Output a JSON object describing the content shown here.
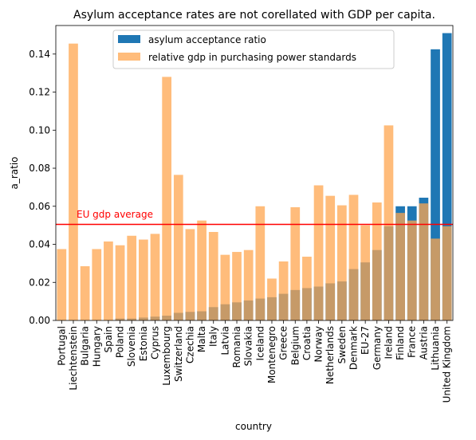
{
  "chart_data": {
    "type": "bar",
    "title": "Asylum acceptance rates are not corellated with GDP per capita.",
    "xlabel": "country",
    "ylabel": "a_ratio",
    "ylim": [
      0,
      0.155
    ],
    "yticks": [
      0.0,
      0.02,
      0.04,
      0.06,
      0.08,
      0.1,
      0.12,
      0.14
    ],
    "ytick_labels": [
      "0.00",
      "0.02",
      "0.04",
      "0.06",
      "0.08",
      "0.10",
      "0.12",
      "0.14"
    ],
    "grid": false,
    "legend_position": "top-center",
    "categories": [
      "Portugal",
      "Liechtenstein",
      "Bulgaria",
      "Hungary",
      "Spain",
      "Poland",
      "Slovenia",
      "Estonia",
      "Cyprus",
      "Luxembourg",
      "Switzerland",
      "Czechia",
      "Malta",
      "Italy",
      "Latvia",
      "Romania",
      "Slovakia",
      "Iceland",
      "Montenegro",
      "Greece",
      "Belgium",
      "Croatia",
      "Norway",
      "Netherlands",
      "Sweden",
      "Denmark",
      "EU-27",
      "Germany",
      "Ireland",
      "Finland",
      "France",
      "Austria",
      "Lithuania",
      "United Kingdom"
    ],
    "series": [
      {
        "name": "asylum acceptance ratio",
        "color": "#1f77b4",
        "values": [
          0.0,
          0.0,
          0.0,
          0.0,
          0.0,
          0.001,
          0.001,
          0.0015,
          0.002,
          0.0025,
          0.004,
          0.0045,
          0.0048,
          0.007,
          0.0085,
          0.0095,
          0.0105,
          0.0115,
          0.0122,
          0.014,
          0.016,
          0.017,
          0.0178,
          0.0195,
          0.0205,
          0.027,
          0.0305,
          0.037,
          0.0495,
          0.06,
          0.06,
          0.0645,
          0.1425,
          0.151
        ]
      },
      {
        "name": "relative gdp in purchasing power standards",
        "color": "#ffa54f",
        "values": [
          0.0375,
          0.1455,
          0.0285,
          0.0375,
          0.0415,
          0.0395,
          0.0445,
          0.0425,
          0.0455,
          0.128,
          0.0765,
          0.048,
          0.0525,
          0.0465,
          0.0345,
          0.036,
          0.037,
          0.06,
          0.022,
          0.031,
          0.0595,
          0.0335,
          0.071,
          0.0655,
          0.0605,
          0.066,
          0.05,
          0.062,
          0.1025,
          0.0565,
          0.0525,
          0.0615,
          0.043,
          0.0495
        ]
      }
    ],
    "reference_line": {
      "value": 0.0505,
      "label": "EU gdp average",
      "color": "#ff0000"
    }
  }
}
